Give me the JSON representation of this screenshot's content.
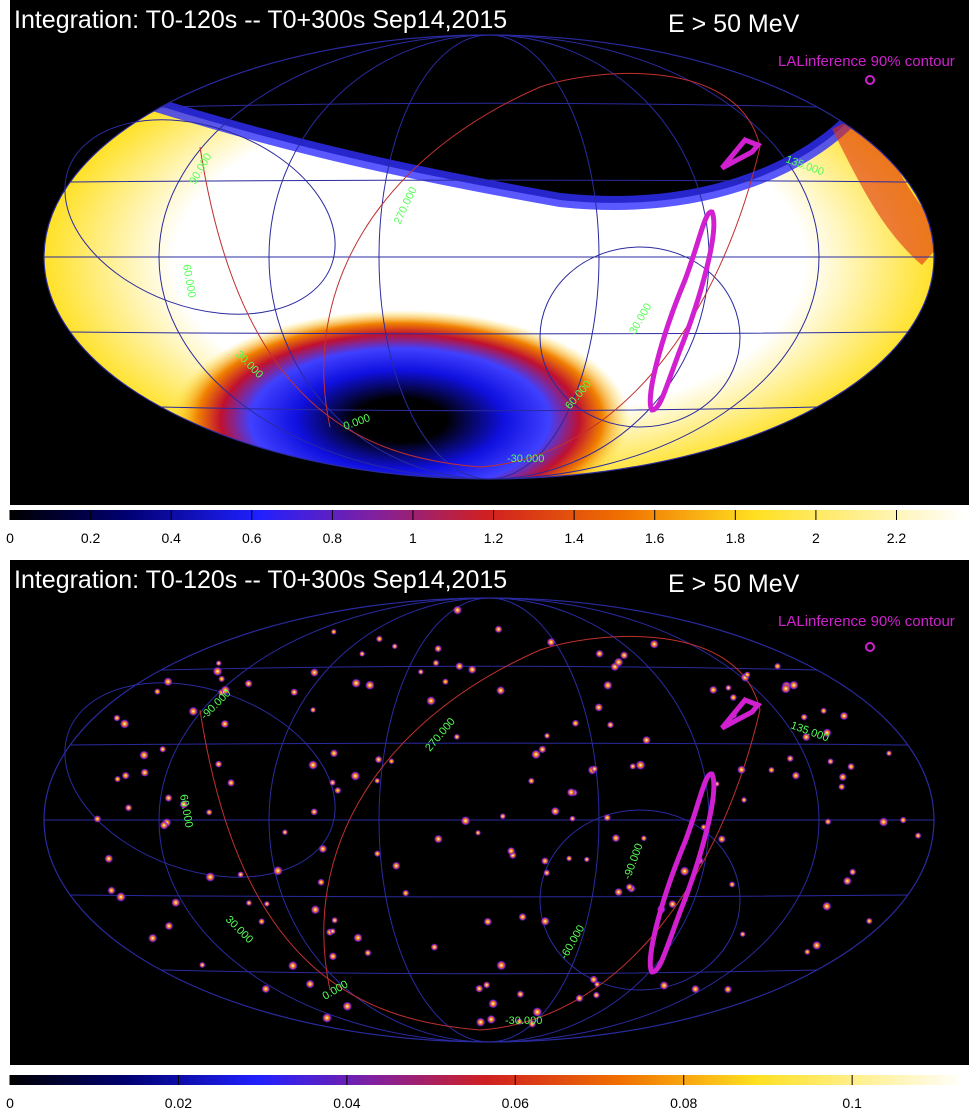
{
  "chart_data": [
    {
      "type": "skymap",
      "title": "Integration: T0-120s -- T0+300s Sep14,2015",
      "energy": "E > 50 MeV",
      "contour_label": "LALinference 90% contour",
      "grid_labels": [
        "90.000",
        "60.000",
        "270.000",
        "135.000",
        "30.000",
        "0.000",
        "-30.000",
        "60.000",
        "30.000"
      ],
      "xlim": [
        0,
        2.37
      ],
      "xticks": [
        0,
        0.2,
        0.4,
        0.6,
        0.8,
        1,
        1.2,
        1.4,
        1.6,
        1.8,
        2,
        2.2
      ]
    },
    {
      "type": "counts",
      "title": "Integration: T0-120s -- T0+300s Sep14,2015",
      "energy": "E > 50 MeV",
      "contour_label": "LALinference 90% contour",
      "grid_labels": [
        "-90.000",
        "60.000",
        "270.000",
        "135.000",
        "30.000",
        "0.000",
        "-30.000",
        "-60.000",
        "-90.000"
      ],
      "xlim": [
        0,
        0.1134
      ],
      "xticks": [
        0,
        0.02,
        0.04,
        0.06,
        0.08,
        0.1
      ]
    }
  ]
}
